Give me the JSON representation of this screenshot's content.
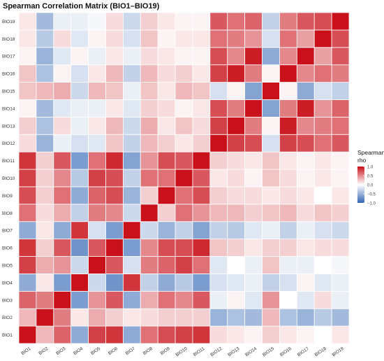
{
  "chart_data": {
    "type": "heatmap",
    "title": "Spearman Correlation Matrix (BIO1–BIO19)",
    "x_categories": [
      "BIO1",
      "BIO2",
      "BIO3",
      "BIO4",
      "BIO5",
      "BIO6",
      "BIO7",
      "BIO8",
      "BIO9",
      "BIO10",
      "BIO11",
      "BIO12",
      "BIO13",
      "BIO14",
      "BIO15",
      "BIO16",
      "BIO17",
      "BIO18",
      "BIO19"
    ],
    "y_categories": [
      "BIO1",
      "BIO2",
      "BIO3",
      "BIO4",
      "BIO5",
      "BIO6",
      "BIO7",
      "BIO8",
      "BIO9",
      "BIO10",
      "BIO11",
      "BIO12",
      "BIO13",
      "BIO14",
      "BIO15",
      "BIO16",
      "BIO17",
      "BIO18",
      "BIO19"
    ],
    "values": [
      [
        1.0,
        0.3,
        0.65,
        -0.55,
        0.8,
        0.85,
        -0.55,
        0.6,
        0.75,
        0.8,
        0.85,
        0.15,
        0.1,
        0.05,
        0.2,
        0.1,
        0.05,
        0.0,
        0.1
      ],
      [
        0.3,
        1.0,
        0.55,
        0.1,
        0.35,
        0.2,
        0.1,
        0.15,
        0.2,
        0.2,
        0.2,
        -0.5,
        -0.4,
        -0.45,
        0.3,
        -0.4,
        -0.5,
        -0.35,
        -0.45
      ],
      [
        0.65,
        0.55,
        1.0,
        -0.65,
        0.45,
        0.7,
        -0.55,
        0.35,
        0.6,
        0.5,
        0.7,
        -0.1,
        0.05,
        -0.15,
        0.45,
        0.0,
        -0.15,
        0.15,
        -0.1
      ],
      [
        -0.55,
        0.1,
        -0.65,
        1.0,
        -0.25,
        -0.7,
        0.85,
        -0.3,
        -0.55,
        -0.35,
        -0.65,
        -0.2,
        -0.15,
        -0.1,
        -0.3,
        -0.2,
        0.05,
        -0.15,
        -0.1
      ],
      [
        0.8,
        0.35,
        0.45,
        -0.25,
        1.0,
        0.7,
        -0.2,
        0.55,
        0.65,
        0.8,
        0.6,
        -0.15,
        0.0,
        -0.1,
        0.25,
        -0.1,
        -0.1,
        0.0,
        -0.05
      ],
      [
        0.85,
        0.2,
        0.7,
        -0.7,
        0.7,
        1.0,
        -0.65,
        0.5,
        0.75,
        0.75,
        0.9,
        0.25,
        0.2,
        0.1,
        0.2,
        0.2,
        0.1,
        0.15,
        0.15
      ],
      [
        -0.55,
        0.1,
        -0.55,
        0.85,
        -0.2,
        -0.65,
        1.0,
        -0.25,
        -0.5,
        -0.3,
        -0.6,
        -0.3,
        -0.35,
        -0.15,
        -0.1,
        -0.3,
        -0.1,
        -0.2,
        -0.25
      ],
      [
        0.6,
        0.15,
        0.35,
        -0.3,
        0.55,
        0.5,
        -0.25,
        1.0,
        0.2,
        0.6,
        0.45,
        0.3,
        0.3,
        0.2,
        0.25,
        0.3,
        0.15,
        0.25,
        0.2
      ],
      [
        0.75,
        0.2,
        0.6,
        -0.55,
        0.65,
        0.75,
        -0.5,
        0.2,
        1.0,
        0.6,
        0.75,
        0.2,
        0.15,
        0.15,
        0.1,
        0.15,
        0.1,
        0.0,
        0.1
      ],
      [
        0.8,
        0.2,
        0.5,
        -0.35,
        0.8,
        0.75,
        -0.3,
        0.6,
        0.6,
        1.0,
        0.7,
        0.1,
        0.15,
        0.05,
        0.25,
        0.15,
        0.05,
        0.1,
        0.05
      ],
      [
        0.85,
        0.2,
        0.7,
        -0.65,
        0.6,
        0.9,
        -0.6,
        0.45,
        0.75,
        0.7,
        1.0,
        0.2,
        0.15,
        0.1,
        0.25,
        0.1,
        0.05,
        0.1,
        0.05
      ],
      [
        0.15,
        -0.5,
        -0.1,
        -0.2,
        -0.15,
        0.25,
        -0.3,
        0.3,
        0.2,
        0.1,
        0.2,
        1.0,
        0.8,
        0.75,
        -0.2,
        0.8,
        0.75,
        0.6,
        0.7
      ],
      [
        0.2,
        -0.4,
        0.15,
        -0.1,
        0.1,
        0.3,
        -0.25,
        0.35,
        0.1,
        0.25,
        0.15,
        0.8,
        1.0,
        0.55,
        0.05,
        0.95,
        0.5,
        0.55,
        0.6
      ],
      [
        0.05,
        -0.45,
        -0.15,
        -0.1,
        -0.1,
        0.1,
        -0.15,
        0.2,
        0.15,
        0.05,
        0.1,
        0.75,
        0.55,
        1.0,
        -0.6,
        0.55,
        0.95,
        0.45,
        0.65
      ],
      [
        0.25,
        0.3,
        0.35,
        -0.25,
        0.3,
        0.25,
        -0.1,
        0.25,
        0.1,
        0.3,
        0.25,
        -0.2,
        0.05,
        -0.6,
        1.0,
        0.05,
        -0.55,
        -0.2,
        -0.3
      ],
      [
        0.25,
        -0.4,
        0.05,
        -0.2,
        0.1,
        0.3,
        -0.3,
        0.3,
        0.15,
        0.2,
        0.1,
        0.8,
        0.95,
        0.55,
        0.05,
        1.0,
        0.5,
        0.6,
        0.55
      ],
      [
        0.05,
        -0.5,
        -0.15,
        0.05,
        -0.1,
        0.1,
        -0.1,
        0.15,
        0.1,
        0.05,
        0.05,
        0.75,
        0.5,
        0.95,
        -0.55,
        0.5,
        1.0,
        0.4,
        0.7
      ],
      [
        0.1,
        -0.35,
        0.15,
        -0.15,
        0.05,
        0.15,
        -0.2,
        0.25,
        0.05,
        0.1,
        0.1,
        0.6,
        0.55,
        0.45,
        -0.2,
        0.6,
        0.4,
        1.0,
        0.75
      ],
      [
        0.1,
        -0.45,
        -0.1,
        -0.1,
        -0.05,
        0.15,
        -0.25,
        0.2,
        0.1,
        0.05,
        0.05,
        0.7,
        0.6,
        0.65,
        -0.3,
        0.55,
        0.7,
        0.75,
        1.0
      ]
    ],
    "color_scale": {
      "min": -1.0,
      "max": 1.0,
      "low_color": "#3366b3",
      "mid_color": "#ffffff",
      "high_color": "#c8111a"
    },
    "legend": {
      "title_lines": [
        "Spearman",
        "rho"
      ],
      "ticks": [
        1.0,
        0.5,
        0.0,
        -0.5,
        -1.0
      ],
      "tick_labels": [
        "1.0",
        "0.5",
        "0.0",
        "−0.5",
        "−1.0"
      ],
      "placement": "right"
    }
  }
}
